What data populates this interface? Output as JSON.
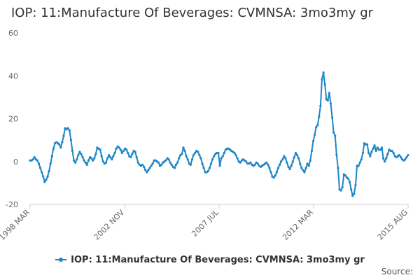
{
  "chart_data": {
    "type": "line",
    "title": "IOP: 11:Manufacture Of Beverages: CVMNSA: 3mo3my gr",
    "xlabel": "",
    "ylabel": "",
    "ylim": [
      -20,
      60
    ],
    "yticks": [
      -20,
      0,
      20,
      40,
      60
    ],
    "xticks": [
      "1998 MAR",
      "2002 NOV",
      "2007 JUL",
      "2012 MAR",
      "2015 AUG"
    ],
    "legend_position": "bottom",
    "grid": false,
    "series": [
      {
        "name": "IOP: 11:Manufacture Of Beverages: CVMNSA: 3mo3my gr",
        "color": "#1f86c6",
        "values": [
          0.5,
          0.5,
          1.0,
          2.0,
          1.0,
          0.5,
          -1.0,
          -3.0,
          -5.0,
          -7.0,
          -9.5,
          -8.5,
          -7.0,
          -4.5,
          -1.0,
          2.5,
          6.0,
          8.5,
          9.0,
          8.5,
          8.0,
          6.5,
          9.0,
          12.0,
          15.5,
          15.0,
          15.5,
          14.5,
          10.0,
          5.0,
          0.5,
          -0.5,
          1.0,
          3.0,
          4.5,
          3.5,
          2.0,
          0.5,
          -0.5,
          -1.5,
          0.5,
          2.0,
          1.5,
          0.5,
          1.5,
          3.5,
          6.5,
          6.0,
          5.5,
          2.5,
          0.0,
          -1.0,
          -0.5,
          1.5,
          3.0,
          2.0,
          1.0,
          2.5,
          4.0,
          6.0,
          7.0,
          6.5,
          5.5,
          4.0,
          5.0,
          6.0,
          5.5,
          4.0,
          2.5,
          2.0,
          3.5,
          5.0,
          4.5,
          2.0,
          -0.5,
          -1.5,
          -2.0,
          -1.5,
          -2.5,
          -4.0,
          -5.0,
          -4.0,
          -3.0,
          -2.0,
          -1.0,
          0.5,
          0.5,
          0.0,
          -0.5,
          -2.0,
          -1.5,
          -0.5,
          0.0,
          0.5,
          1.5,
          1.0,
          -0.5,
          -1.5,
          -2.5,
          -3.0,
          -1.5,
          -0.5,
          1.5,
          3.0,
          3.5,
          6.5,
          5.0,
          2.5,
          1.0,
          -1.0,
          -1.5,
          1.0,
          3.0,
          4.0,
          5.0,
          4.5,
          3.0,
          1.5,
          -1.0,
          -3.0,
          -5.0,
          -5.0,
          -4.5,
          -3.0,
          -1.0,
          1.0,
          2.5,
          3.5,
          4.0,
          4.0,
          -2.0,
          1.5,
          2.5,
          4.0,
          5.5,
          6.0,
          6.0,
          5.5,
          5.0,
          4.5,
          4.0,
          3.0,
          1.5,
          0.0,
          -0.5,
          0.5,
          1.0,
          0.5,
          0.0,
          -1.0,
          -1.0,
          -0.5,
          -1.5,
          -2.0,
          -1.5,
          -0.5,
          -1.0,
          -2.0,
          -2.5,
          -2.0,
          -1.5,
          -1.0,
          -0.5,
          -1.5,
          -3.0,
          -5.0,
          -7.0,
          -7.5,
          -6.5,
          -5.0,
          -3.0,
          -1.5,
          0.0,
          1.0,
          2.5,
          1.5,
          -0.5,
          -2.5,
          -3.5,
          -2.0,
          0.0,
          2.0,
          4.0,
          3.0,
          1.5,
          -1.0,
          -3.0,
          -4.0,
          -5.0,
          -3.0,
          -1.0,
          -2.0,
          0.5,
          5.0,
          9.5,
          12.5,
          16.0,
          17.0,
          21.0,
          26.0,
          38.5,
          41.5,
          36.0,
          29.0,
          28.5,
          32.0,
          27.0,
          20.5,
          13.5,
          12.0,
          3.0,
          -3.0,
          -13.0,
          -13.5,
          -12.0,
          -6.0,
          -6.5,
          -7.5,
          -8.0,
          -9.5,
          -13.0,
          -16.0,
          -15.0,
          -11.0,
          -2.0,
          -2.0,
          -0.5,
          1.0,
          4.0,
          8.5,
          8.0,
          8.0,
          4.0,
          2.5,
          4.5,
          6.0,
          7.5,
          5.0,
          6.5,
          5.5,
          5.5,
          6.5,
          1.5,
          0.0,
          1.5,
          3.5,
          5.5,
          5.0,
          5.0,
          4.0,
          2.5,
          2.0,
          2.5,
          3.0,
          2.0,
          1.0,
          0.5,
          1.0,
          2.0,
          3.0
        ]
      }
    ]
  },
  "source_label": "Source:"
}
